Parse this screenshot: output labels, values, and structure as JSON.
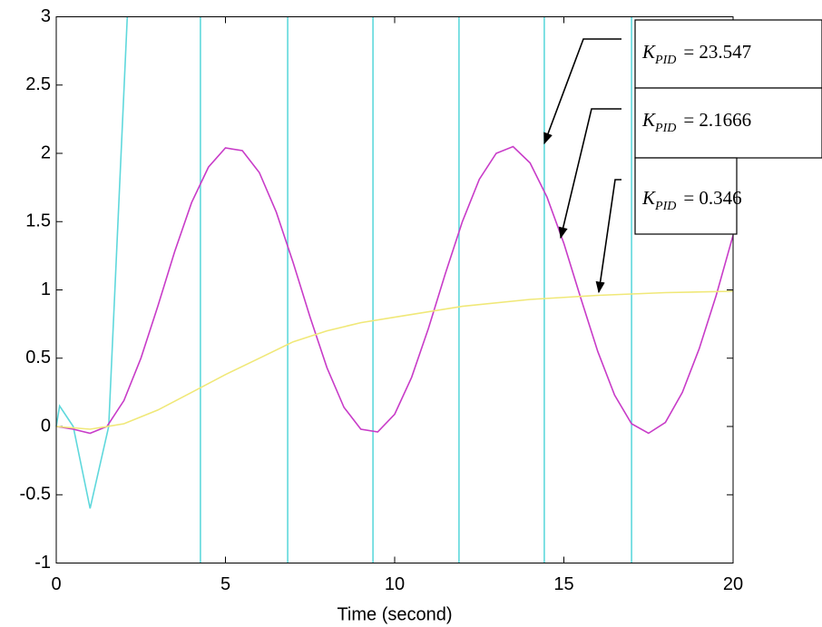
{
  "chart_data": {
    "type": "line",
    "xlabel": "Time (second)",
    "xlim": [
      0,
      20
    ],
    "xticks": [
      0,
      5,
      10,
      15,
      20
    ],
    "ylim": [
      -1,
      3
    ],
    "yticks": [
      -1,
      -0.5,
      0,
      0.5,
      1,
      1.5,
      2,
      2.5,
      3
    ],
    "grid": false,
    "series": [
      {
        "color": "#5fd8dc",
        "x": [
          0,
          0.1,
          0.5,
          1.0,
          1.55,
          2.1,
          2.1,
          4.26,
          4.26,
          4.26,
          6.84,
          6.84,
          6.84,
          9.36,
          9.36,
          9.36,
          11.9,
          11.9,
          11.9,
          14.42,
          14.42,
          14.42,
          17.0,
          17.0
        ],
        "values": [
          0,
          0.15,
          0,
          -0.6,
          0,
          3,
          null,
          3,
          -1,
          null,
          -1,
          3,
          null,
          3,
          -1,
          null,
          -1,
          3,
          null,
          3,
          -1,
          null,
          -1,
          3
        ]
      },
      {
        "color": "#c83cc8",
        "x": [
          0,
          0.5,
          1.0,
          1.5,
          2,
          2.5,
          3,
          3.5,
          4,
          4.5,
          5,
          5.5,
          6,
          6.5,
          7,
          7.5,
          8,
          8.5,
          9,
          9.5,
          10,
          10.5,
          11,
          11.5,
          12,
          12.5,
          13,
          13.5,
          14,
          14.5,
          15,
          15.5,
          16,
          16.5,
          17,
          17.5,
          18,
          18.5,
          19,
          19.5,
          20
        ],
        "values": [
          0,
          -0.02,
          -0.05,
          0,
          0.19,
          0.5,
          0.88,
          1.28,
          1.64,
          1.9,
          2.04,
          2.02,
          1.86,
          1.57,
          1.2,
          0.8,
          0.43,
          0.14,
          -0.02,
          -0.04,
          0.09,
          0.36,
          0.72,
          1.12,
          1.5,
          1.81,
          2.0,
          2.05,
          1.93,
          1.68,
          1.34,
          0.94,
          0.55,
          0.23,
          0.02,
          -0.05,
          0.03,
          0.25,
          0.57,
          0.96,
          1.4
        ]
      },
      {
        "color": "#f0e878",
        "x": [
          0,
          1,
          2,
          3,
          4,
          5,
          6,
          7,
          8,
          9,
          10,
          12,
          14,
          16,
          18,
          20
        ],
        "values": [
          0,
          -0.02,
          0.02,
          0.12,
          0.25,
          0.38,
          0.5,
          0.62,
          0.7,
          0.76,
          0.8,
          0.88,
          0.93,
          0.96,
          0.98,
          0.99
        ]
      }
    ],
    "annotations": [
      {
        "symbol": "K",
        "subscript": "PID",
        "text": "= 23.547"
      },
      {
        "symbol": "K",
        "subscript": "PID",
        "text": "= 2.1666"
      },
      {
        "symbol": "K",
        "subscript": "PID",
        "text": "= 0.346"
      }
    ]
  }
}
